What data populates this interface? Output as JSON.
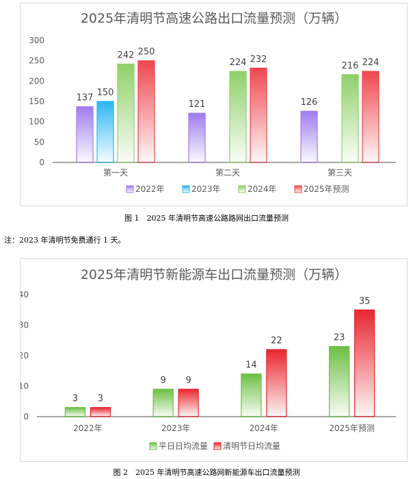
{
  "chart_data": [
    {
      "type": "bar",
      "title": "2025年清明节高速公路出口流量预测（万辆）",
      "categories": [
        "第一天",
        "第二天",
        "第三天"
      ],
      "ylim": [
        0,
        300
      ],
      "yticks": [
        0,
        50,
        100,
        150,
        200,
        250,
        300
      ],
      "legend_position": "bottom",
      "grid": false,
      "series": [
        {
          "name": "2022年",
          "values": [
            137,
            121,
            126
          ],
          "color": "#a07cf0"
        },
        {
          "name": "2023年",
          "values": [
            150,
            null,
            null
          ],
          "color": "#2ab7f2"
        },
        {
          "name": "2024年",
          "values": [
            242,
            224,
            216
          ],
          "color": "#8fd068"
        },
        {
          "name": "2025年预测",
          "values": [
            250,
            232,
            224
          ],
          "color": "#f0474f"
        }
      ]
    },
    {
      "type": "bar",
      "title": "2025年清明节新能源车出口流量预测（万辆）",
      "categories": [
        "2022年",
        "2023年",
        "2024年",
        "2025年预测"
      ],
      "ylim": [
        0,
        40
      ],
      "yticks": [
        0,
        10,
        20,
        30,
        40
      ],
      "legend_position": "bottom",
      "grid": false,
      "series": [
        {
          "name": "平日日均流量",
          "values": [
            3,
            9,
            14,
            23
          ],
          "color": "#6cbf44"
        },
        {
          "name": "清明节日均流量",
          "values": [
            3,
            9,
            22,
            35
          ],
          "color": "#e8262e"
        }
      ]
    }
  ],
  "captions": {
    "figure1": "图 1　2025 年清明节高速公路路网出口流量预测",
    "note": "注：2023 年清明节免费通行 1 天。",
    "figure2": "图 2　2025 年清明节高速公路网新能源车出口流量预测"
  }
}
